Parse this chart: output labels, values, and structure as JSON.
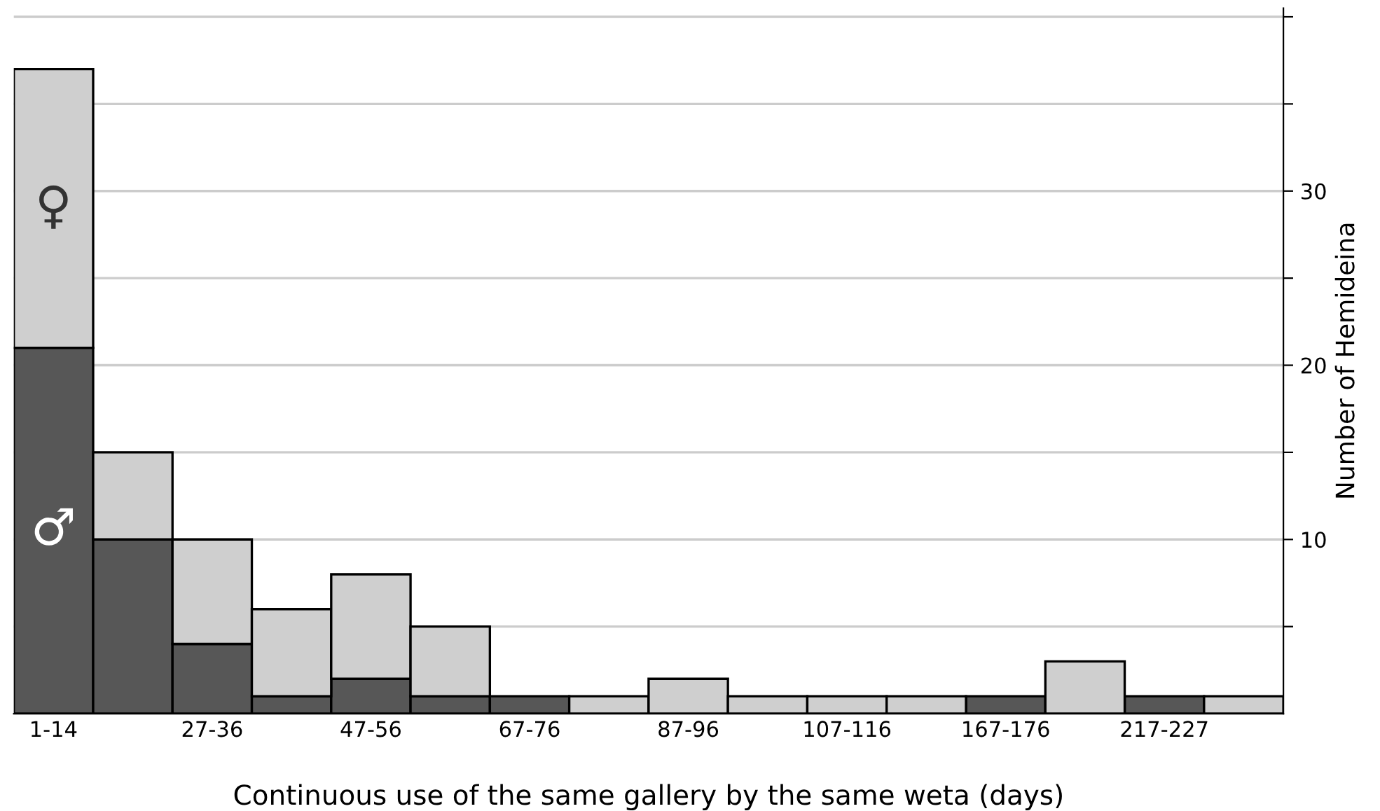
{
  "chart_data": {
    "type": "bar",
    "stacked": true,
    "categories": [
      "1-14",
      null,
      "27-36",
      null,
      "47-56",
      null,
      "67-76",
      null,
      "87-96",
      null,
      "107-116",
      null,
      "167-176",
      null,
      "217-227",
      null
    ],
    "series": [
      {
        "name": "♂",
        "color": "#575757",
        "values": [
          21,
          10,
          4,
          1,
          2,
          1,
          1,
          0,
          0,
          0,
          0,
          0,
          1,
          0,
          1,
          0
        ]
      },
      {
        "name": "♀",
        "color": "#cfcfcf",
        "values": [
          16,
          5,
          6,
          5,
          6,
          4,
          0,
          1,
          2,
          1,
          1,
          1,
          0,
          3,
          0,
          1
        ]
      }
    ],
    "xlabel": "Continuous use of the same gallery by the same weta (days)",
    "ylabel": "Number of Hemideina",
    "ylim": [
      0,
      40.5
    ],
    "yticks": [
      {
        "value": 5,
        "label": null
      },
      10,
      {
        "value": 15,
        "label": null
      },
      20,
      {
        "value": 25,
        "label": null
      },
      30,
      {
        "value": 35,
        "label": null
      },
      {
        "value": 40,
        "label": null
      }
    ],
    "grid": "y",
    "legend": false
  }
}
